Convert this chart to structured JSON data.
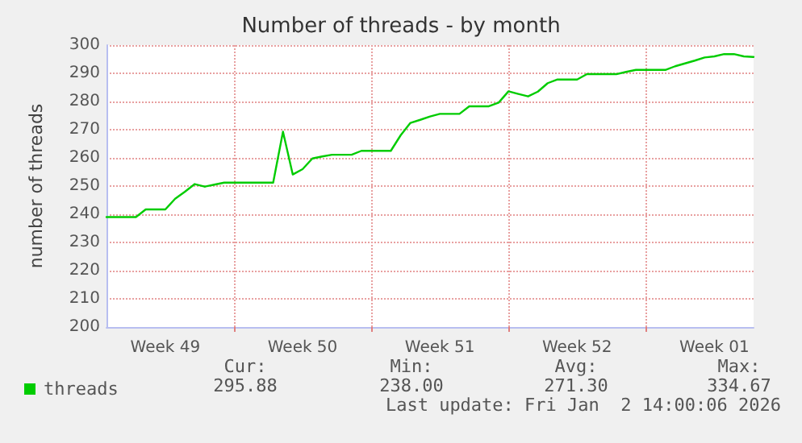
{
  "chart_data": {
    "type": "line",
    "title": "Number of threads - by month",
    "ylabel": "number of threads",
    "categories": [
      null,
      null,
      null,
      null,
      null,
      null,
      "Week 49",
      null,
      null,
      null,
      null,
      null,
      null,
      null,
      null,
      null,
      null,
      null,
      null,
      null,
      "Week 50",
      null,
      null,
      null,
      null,
      null,
      null,
      null,
      null,
      null,
      null,
      null,
      null,
      null,
      "Week 51",
      null,
      null,
      null,
      null,
      null,
      null,
      null,
      null,
      null,
      null,
      null,
      null,
      null,
      "Week 52",
      null,
      null,
      null,
      null,
      null,
      null,
      null,
      null,
      null,
      null,
      null,
      null,
      null,
      "Week 01",
      null,
      null,
      null,
      null
    ],
    "series": [
      {
        "name": "threads",
        "color": "#00cc00",
        "values": [
          239,
          239,
          239,
          239,
          241.7,
          241.7,
          241.7,
          245.5,
          248,
          250.7,
          249.8,
          250.5,
          251.2,
          251.2,
          251.2,
          251.2,
          251.2,
          251.2,
          269.3,
          254.1,
          256,
          259.8,
          260.5,
          261.1,
          261.1,
          261.1,
          262.5,
          262.5,
          262.5,
          262.5,
          268,
          272.4,
          273.5,
          274.7,
          275.6,
          275.6,
          275.6,
          278.3,
          278.3,
          278.3,
          279.6,
          283.6,
          282.7,
          281.8,
          283.5,
          286.5,
          287.8,
          287.8,
          287.8,
          289.7,
          289.7,
          289.7,
          289.7,
          290.5,
          291.2,
          291.2,
          291.2,
          291.2,
          292.5,
          293.5,
          294.5,
          295.6,
          296,
          296.8,
          296.8,
          296,
          295.8
        ]
      }
    ],
    "ylim": [
      200,
      300
    ],
    "yticks": [
      200,
      210,
      220,
      230,
      240,
      250,
      260,
      270,
      280,
      290,
      300
    ],
    "grid": true,
    "legend": "bottom left",
    "marker": "none",
    "line_style": "solid",
    "annotations": [
      "Cur:",
      "295.88",
      "Min:",
      "238.00",
      "Avg:",
      "271.30",
      "Max:",
      "334.67",
      "Last update: Fri Jan  2 14:00:06 2026"
    ]
  }
}
